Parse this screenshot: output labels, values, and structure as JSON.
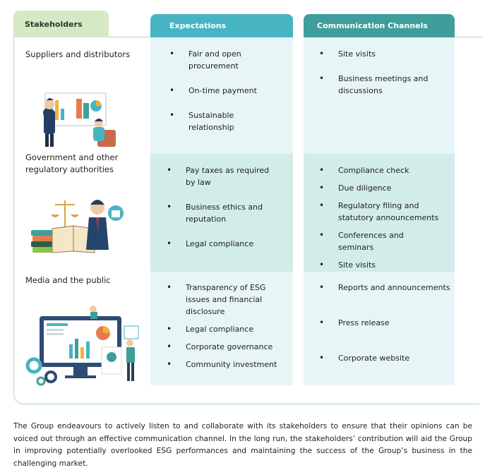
{
  "header": {
    "stakeholders": "Stakeholders",
    "expectations": "Expectations",
    "channels": "Communication Channels"
  },
  "rows": [
    {
      "stakeholder": "Suppliers and distributors",
      "expectations": [
        "Fair and open procurement",
        "On-time payment",
        "Sustainable relationship"
      ],
      "channels": [
        "Site visits",
        "Business meetings and discussions"
      ]
    },
    {
      "stakeholder": "Government and other regulatory authorities",
      "expectations": [
        "Pay taxes as required by law",
        "Business ethics and reputation",
        "Legal compliance"
      ],
      "channels": [
        "Compliance check",
        "Due diligence",
        "Regulatory filing and statutory announcements",
        "Conferences and seminars",
        "Site visits"
      ]
    },
    {
      "stakeholder": "Media and the public",
      "expectations": [
        "Transparency of ESG issues and financial disclosure",
        "Legal compliance",
        "Corporate governance",
        "Community investment"
      ],
      "channels": [
        "Reports and announcements",
        "Press release",
        "Corporate website"
      ]
    }
  ],
  "footer_paragraph": "The Group endeavours to actively listen to and collaborate with its stakeholders to ensure that their opinions can be voiced out through an effective communication channel. In the long run, the stakeholders’ contribution will aid the Group in improving potentially overlooked ESG performances and maintaining the success of the Group’s business in the challenging market.",
  "colors": {
    "stake_tab": "#d6e9c5",
    "exp_tab": "#47b4c4",
    "comm_tab": "#3f9e9b",
    "light_cell": "#e8f5f6",
    "mid_cell": "#d2ece9"
  }
}
